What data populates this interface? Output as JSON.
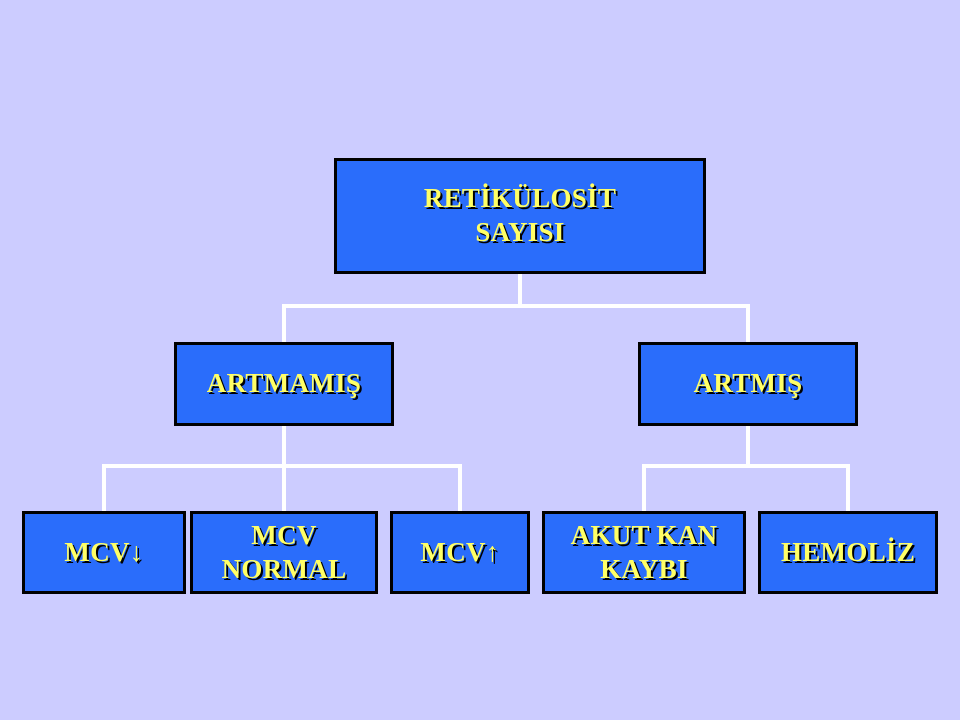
{
  "diagram": {
    "root": {
      "label": "RETİKÜLOSİT\nSAYISI"
    },
    "left_branch": {
      "label": "ARTMAMIŞ"
    },
    "right_branch": {
      "label": "ARTMIŞ"
    },
    "left_leaves": [
      {
        "label": "MCV↓"
      },
      {
        "label": "MCV\nNORMAL"
      },
      {
        "label": "MCV↑"
      }
    ],
    "right_leaves": [
      {
        "label": "AKUT KAN\nKAYBI"
      },
      {
        "label": "HEMOLİZ"
      }
    ]
  },
  "colors": {
    "background": "#ccccff",
    "node_fill": "#2a6dfb",
    "node_border": "#000000",
    "label_text": "#ffff66",
    "connector": "#ffffff"
  }
}
